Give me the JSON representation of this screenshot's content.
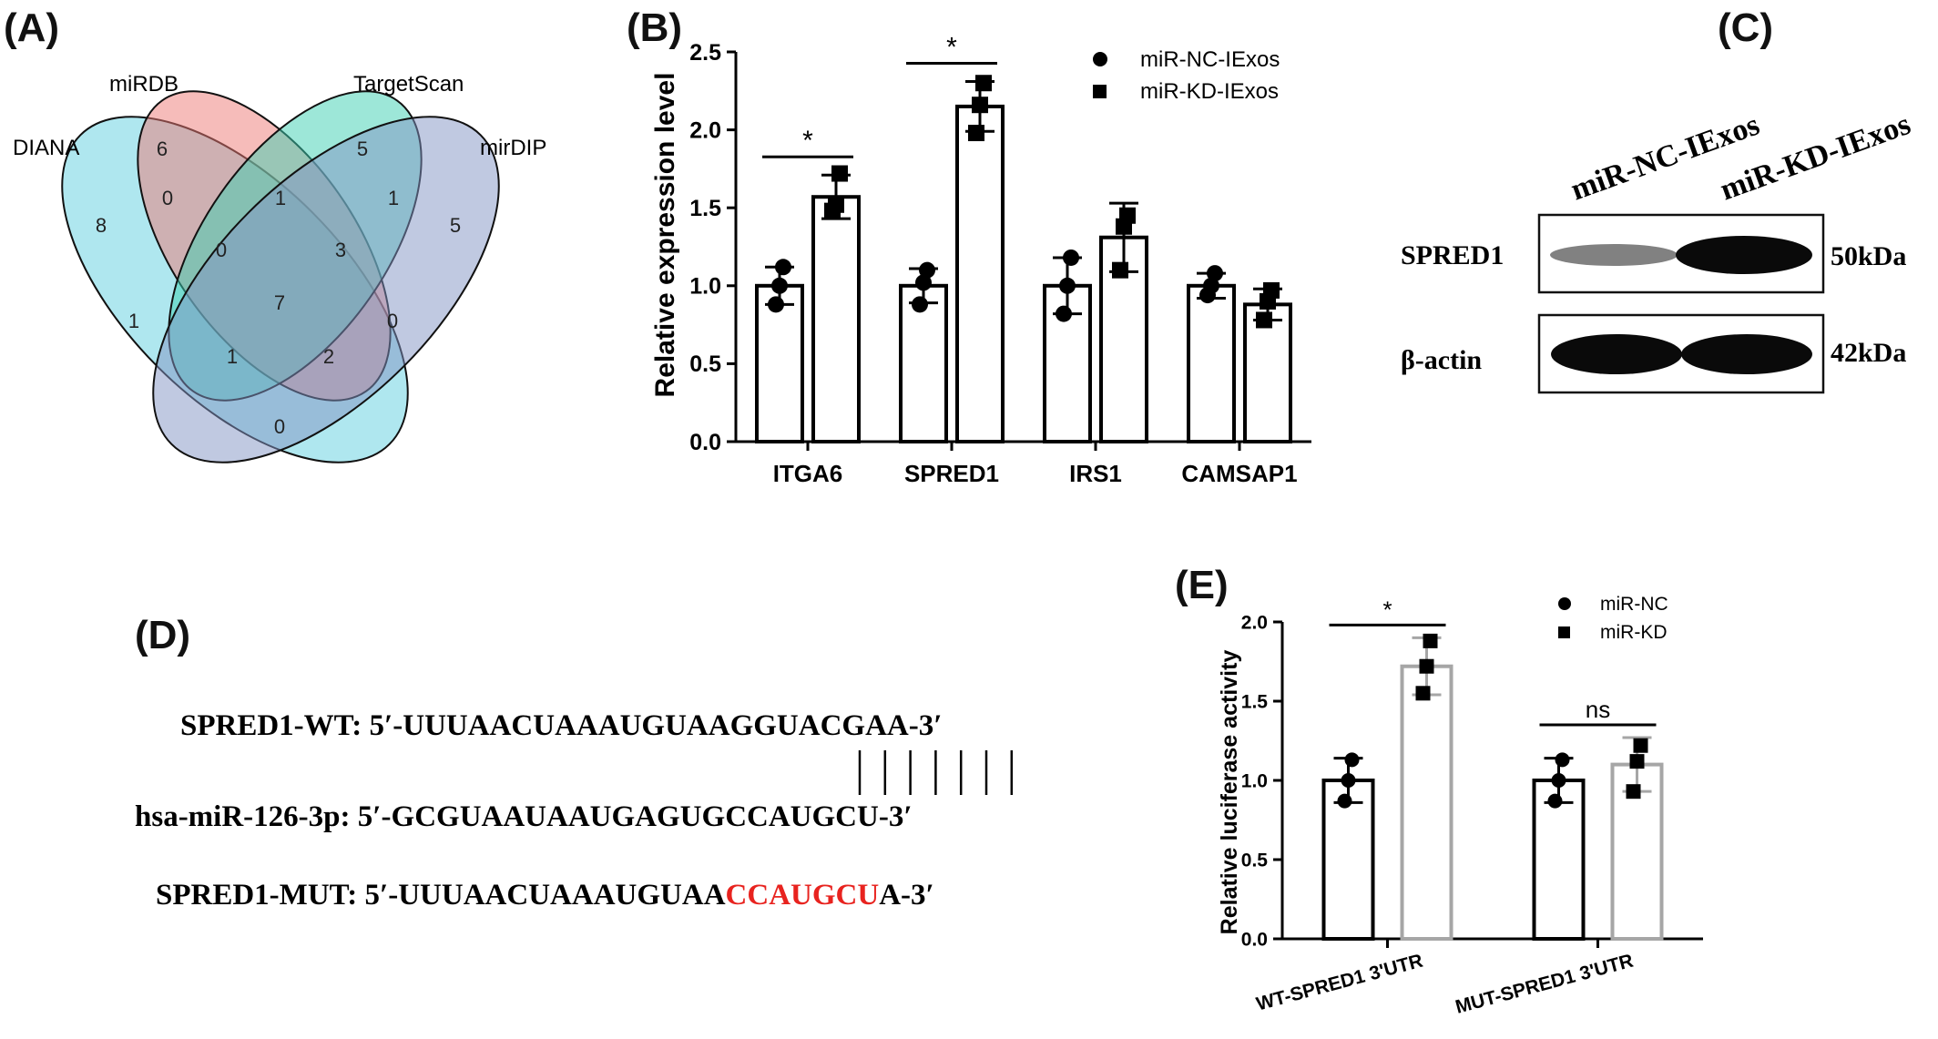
{
  "panels": {
    "A": "(A)",
    "B": "(B)",
    "C": "(C)",
    "D": "(D)",
    "E": "(E)"
  },
  "chart_data": [
    {
      "panel": "A",
      "type": "venn",
      "sets": [
        {
          "name": "DIANA",
          "color": "#5fd0e0"
        },
        {
          "name": "miRDB",
          "color": "#ee7a76"
        },
        {
          "name": "TargetScan",
          "color": "#3ccfb1"
        },
        {
          "name": "mirDIP",
          "color": "#8193c4"
        }
      ],
      "regions": {
        "DIANA_only": "8",
        "miRDB_only": "6",
        "TargetScan_only": "5",
        "mirDIP_only": "5",
        "DIANA_miRDB": "0",
        "miRDB_TargetScan": "1",
        "TargetScan_mirDIP": "1",
        "DIANA_miRDB_TargetScan": "0",
        "miRDB_TargetScan_mirDIP": "3",
        "all_four": "7",
        "DIANA_TargetScan": "1",
        "miRDB_mirDIP": "0",
        "DIANA_TargetScan_mirDIP": "1",
        "DIANA_miRDB_mirDIP": "2",
        "DIANA_mirDIP": "0"
      }
    },
    {
      "panel": "B",
      "type": "bar",
      "ylabel": "Relative expression level",
      "ylim": [
        0,
        2.5
      ],
      "yticks": [
        "0.0",
        "0.5",
        "1.0",
        "1.5",
        "2.0",
        "2.5"
      ],
      "categories": [
        "ITGA6",
        "SPRED1",
        "IRS1",
        "CAMSAP1"
      ],
      "series": [
        {
          "name": "miR-NC-IExos",
          "marker": "circle",
          "values": [
            1.0,
            1.0,
            1.0,
            1.0
          ],
          "sd": [
            0.12,
            0.11,
            0.18,
            0.08
          ],
          "points": [
            [
              1.12,
              0.88,
              1.0
            ],
            [
              1.1,
              0.88,
              1.02
            ],
            [
              1.18,
              0.82,
              1.0
            ],
            [
              1.08,
              0.94,
              1.0
            ]
          ]
        },
        {
          "name": "miR-KD-IExos",
          "marker": "square",
          "values": [
            1.57,
            2.15,
            1.31,
            0.88
          ],
          "sd": [
            0.14,
            0.16,
            0.22,
            0.1
          ],
          "points": [
            [
              1.72,
              1.48,
              1.52
            ],
            [
              2.3,
              1.98,
              2.16
            ],
            [
              1.45,
              1.1,
              1.38
            ],
            [
              0.97,
              0.78,
              0.9
            ]
          ]
        }
      ],
      "significance": [
        {
          "category": "ITGA6",
          "label": "*"
        },
        {
          "category": "SPRED1",
          "label": "*"
        }
      ]
    },
    {
      "panel": "E",
      "type": "bar",
      "ylabel": "Relative luciferase activity",
      "ylim": [
        0,
        2.0
      ],
      "yticks": [
        "0.0",
        "0.5",
        "1.0",
        "1.5",
        "2.0"
      ],
      "categories": [
        "WT-SPRED1 3'UTR",
        "MUT-SPRED1 3'UTR"
      ],
      "series": [
        {
          "name": "miR-NC",
          "marker": "circle",
          "color": "#000000",
          "values": [
            1.0,
            1.0
          ],
          "sd": [
            0.14,
            0.14
          ],
          "points": [
            [
              1.13,
              0.87,
              1.0
            ],
            [
              1.13,
              0.87,
              1.0
            ]
          ]
        },
        {
          "name": "miR-KD",
          "marker": "square",
          "color": "#a6a6a6",
          "values": [
            1.72,
            1.1
          ],
          "sd": [
            0.18,
            0.17
          ],
          "points": [
            [
              1.88,
              1.55,
              1.72
            ],
            [
              1.22,
              0.93,
              1.12
            ]
          ]
        }
      ],
      "significance": [
        {
          "category": "WT-SPRED1 3'UTR",
          "label": "*"
        },
        {
          "category": "MUT-SPRED1 3'UTR",
          "label": "ns"
        }
      ]
    }
  ],
  "blot": {
    "columns": [
      "miR-NC-IExos",
      "miR-KD-IExos"
    ],
    "rows": [
      {
        "label": "SPRED1",
        "size": "50kDa",
        "intensity": [
          0.55,
          1.0
        ]
      },
      {
        "label": "β-actin",
        "size": "42kDa",
        "intensity": [
          1.0,
          1.0
        ]
      }
    ]
  },
  "sequences": {
    "wt_label": "SPRED1-WT:",
    "wt_seq_a": "5′-UUUAACUAAAUGUAA",
    "wt_seq_b": "GGUACGA",
    "wt_seq_c": "A-3′",
    "mir_label": "hsa-miR-126-3p:",
    "mir_seq_a": "5′-GCGUAAUAAUGAGUG",
    "mir_seq_b": "CCAUGCU",
    "mir_seq_c": "-3′",
    "mut_label": "SPRED1-MUT:",
    "mut_seq_a": "5′-UUUAACUAAAUGUAA",
    "mut_seq_b": "CCAUGCU",
    "mut_seq_c": "A-3′",
    "pairs": 7,
    "mut_color": "#e8231f"
  }
}
